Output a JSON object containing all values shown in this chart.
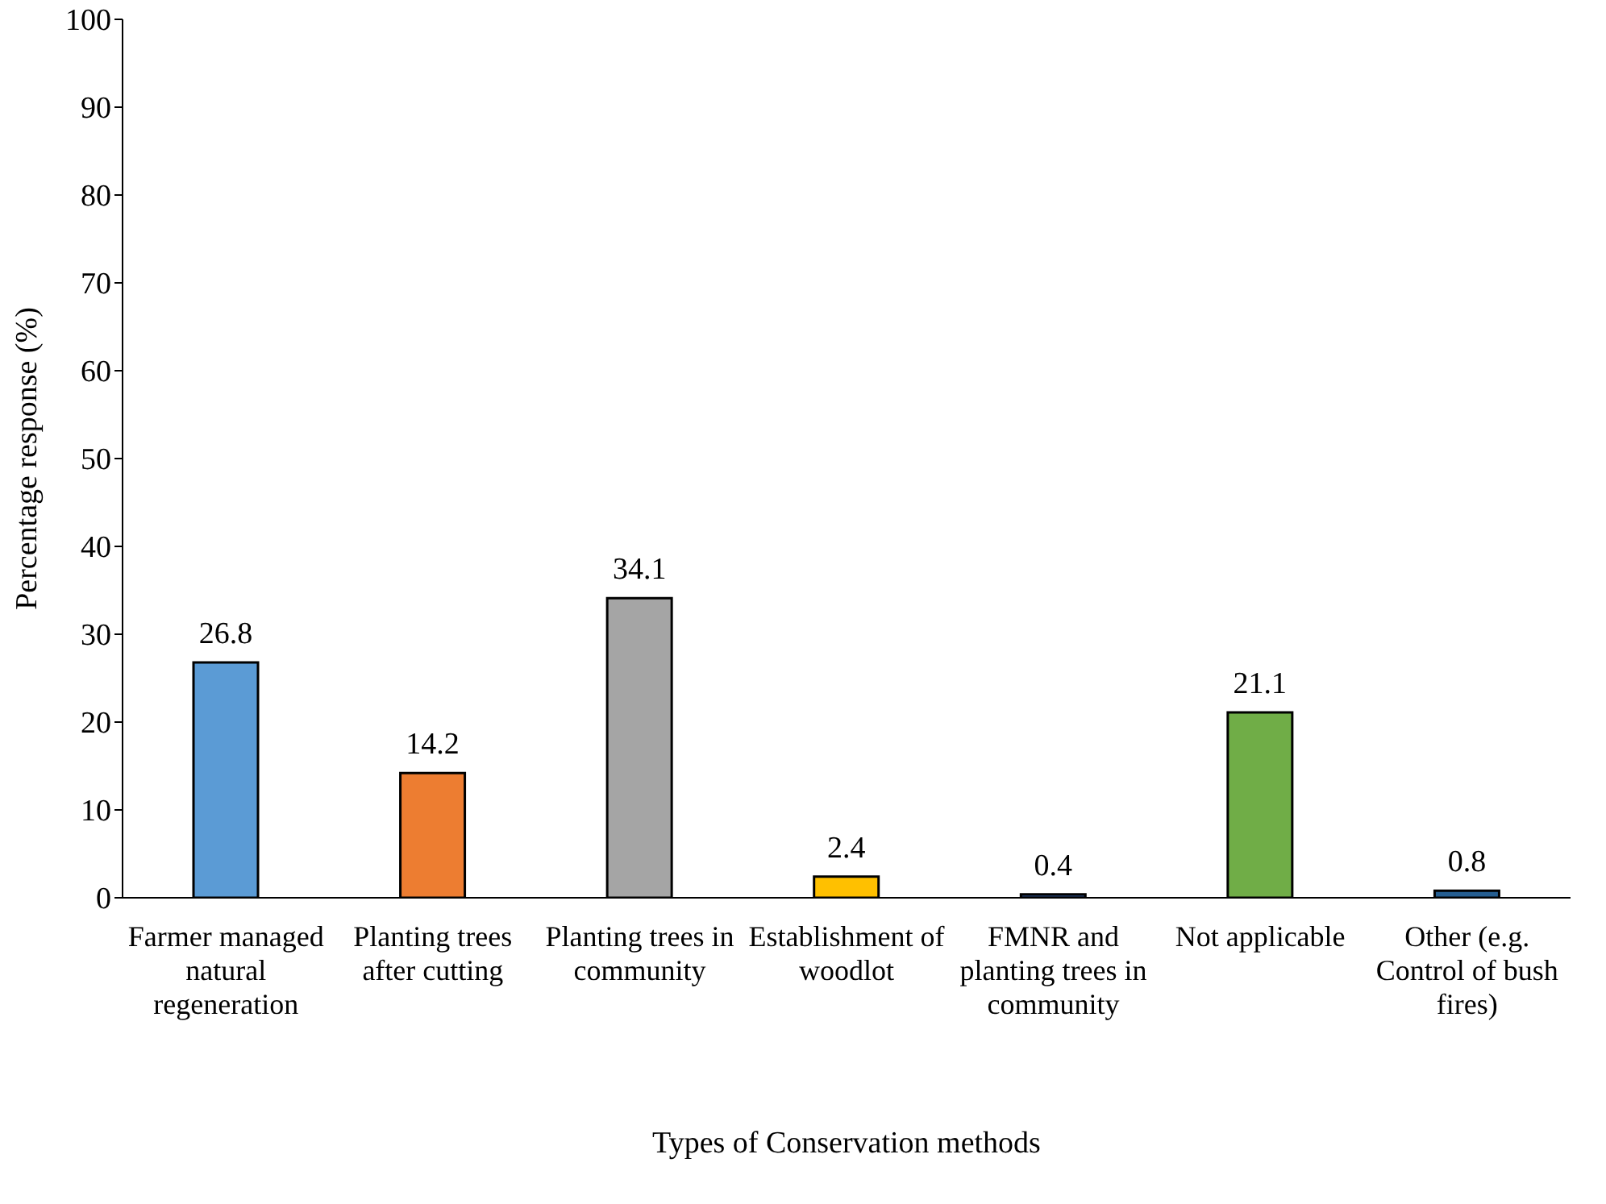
{
  "chart_data": {
    "type": "bar",
    "xlabel": "Types of Conservation methods",
    "ylabel": "Percentage response (%)",
    "categories": [
      "Farmer managed natural regeneration",
      "Planting trees after cutting",
      "Planting trees in community",
      "Establishment of woodlot",
      "FMNR and planting trees in community",
      "Not applicable",
      "Other (e.g. Control of bush fires)"
    ],
    "values": [
      26.8,
      14.2,
      34.1,
      2.4,
      0.4,
      21.1,
      0.8
    ],
    "colors": [
      "#5b9bd5",
      "#ed7d31",
      "#a5a5a5",
      "#ffc000",
      "#264478",
      "#70ad47",
      "#255e91"
    ],
    "ylim": [
      0,
      100
    ],
    "yticks": [
      0,
      10,
      20,
      30,
      40,
      50,
      60,
      70,
      80,
      90,
      100
    ],
    "grid": false,
    "legend": false,
    "data_labels": true
  }
}
